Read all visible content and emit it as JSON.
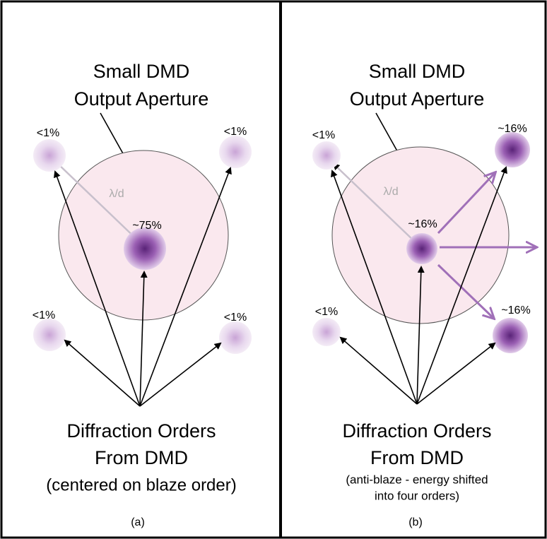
{
  "panels": [
    {
      "title_lines": [
        "Small DMD",
        "Output Aperture"
      ],
      "spot_labels": [
        "~75%",
        "<1%",
        "<1%",
        "<1%",
        "<1%"
      ],
      "wavelength_label": "λ/d",
      "caption_lines": [
        "Diffraction Orders",
        "From DMD",
        "(centered on blaze order)"
      ],
      "panel_label": "(a)"
    },
    {
      "title_lines": [
        "Small DMD",
        "Output Aperture"
      ],
      "spot_labels": [
        "~16%",
        "<1%",
        "~16%",
        "<1%",
        "~16%"
      ],
      "wavelength_label": "λ/d",
      "caption_lines": [
        "Diffraction Orders",
        "From DMD",
        "(anti-blaze - energy shifted",
        "into four orders)"
      ],
      "panel_label": "(b)"
    }
  ]
}
